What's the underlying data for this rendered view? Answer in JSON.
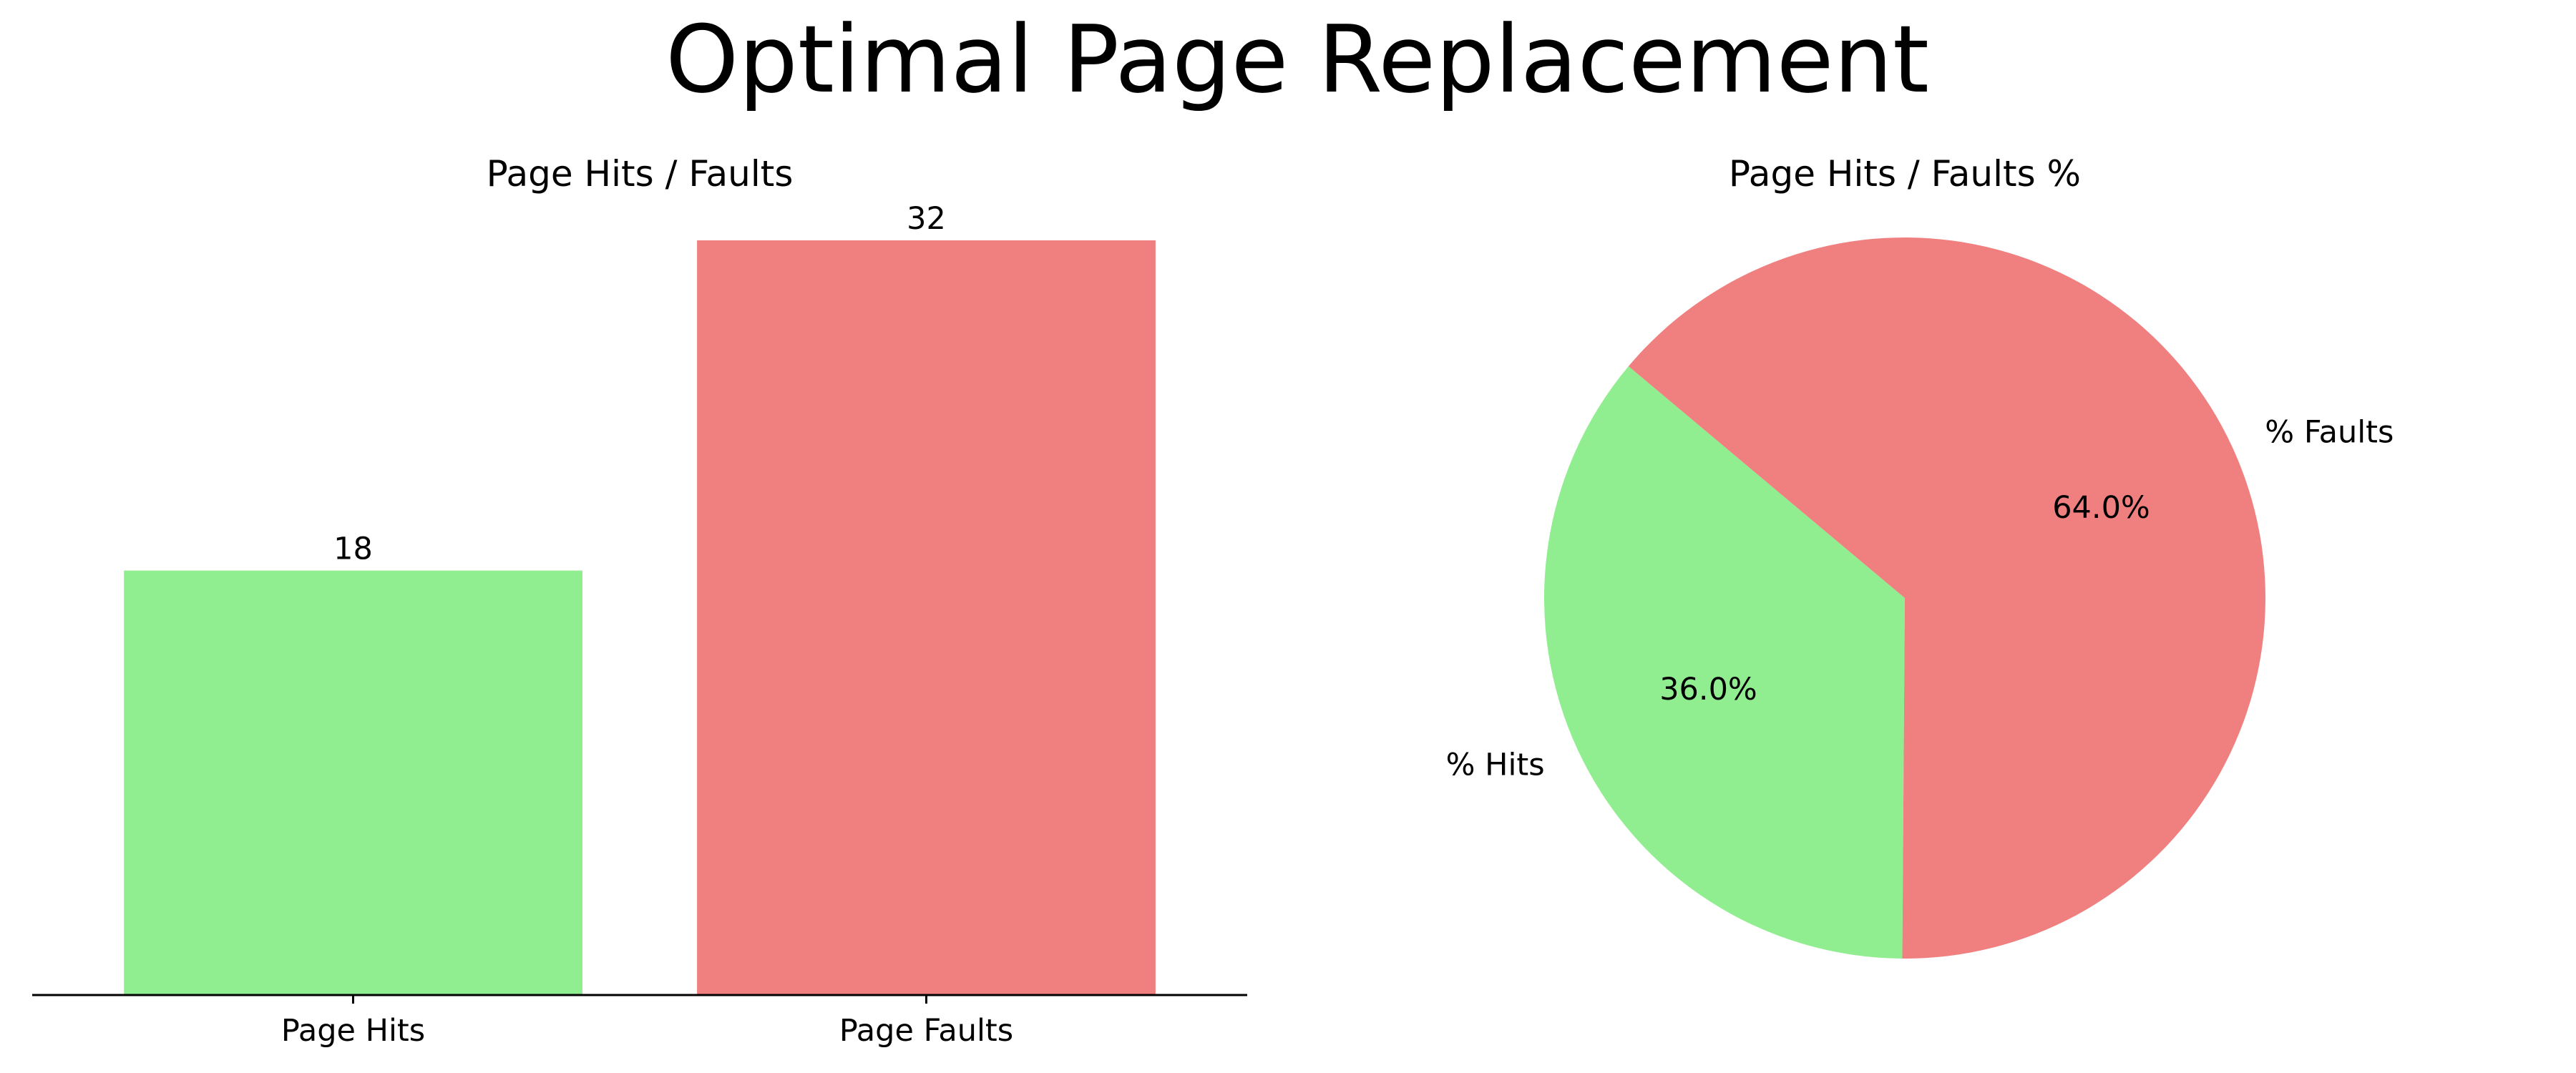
{
  "figure": {
    "title": "Optimal Page Replacement"
  },
  "chart_data": [
    {
      "type": "bar",
      "title": "Page Hits / Faults",
      "categories": [
        "Page Hits",
        "Page Faults"
      ],
      "values": [
        18,
        32
      ],
      "data_labels": [
        "18",
        "32"
      ],
      "colors": [
        "#90ee90",
        "#f08080"
      ],
      "ylim": [
        0,
        32
      ],
      "y_axis_visible": false,
      "grid": false,
      "xlabel": "",
      "ylabel": ""
    },
    {
      "type": "pie",
      "title": "Page Hits / Faults %",
      "labels": [
        "% Hits",
        "% Faults"
      ],
      "values": [
        36.0,
        64.0
      ],
      "percent_labels": [
        "36.0%",
        "64.0%"
      ],
      "colors": [
        "#90ee90",
        "#f08080"
      ],
      "start_angle_deg": 140,
      "direction": "counterclockwise"
    }
  ]
}
